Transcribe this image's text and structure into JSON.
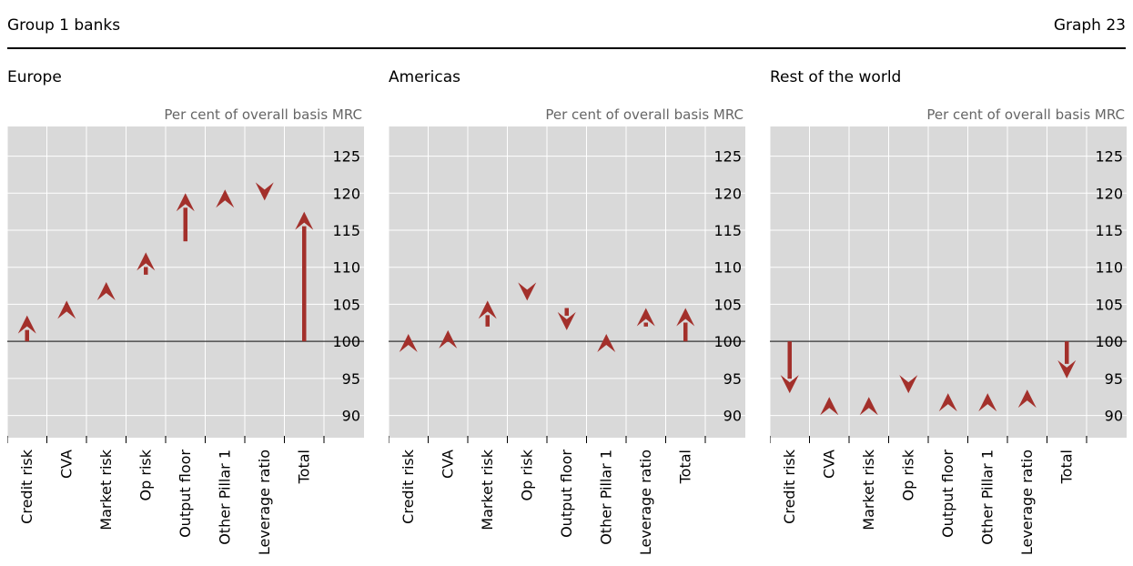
{
  "header": {
    "left": "Group 1 banks",
    "right": "Graph 23"
  },
  "colors": {
    "arrow": "#a3302b",
    "plot_bg": "#d9d9d9",
    "grid": "#ffffff",
    "baseline": "#333333"
  },
  "chart_data": [
    {
      "type": "arrow",
      "title": "Europe",
      "unit_label": "Per cent of overall basis MRC",
      "ylim": [
        87,
        129
      ],
      "yticks": [
        90,
        95,
        100,
        105,
        110,
        115,
        120,
        125
      ],
      "baseline": 100,
      "categories": [
        "Credit risk",
        "CVA",
        "Market risk",
        "Op risk",
        "Output floor",
        "Other Pillar 1",
        "Leverage ratio",
        "Total"
      ],
      "arrows": [
        {
          "from": 100,
          "to": 103.5
        },
        {
          "from": 104.5,
          "to": 105.5
        },
        {
          "from": 106.5,
          "to": 108.0
        },
        {
          "from": 109.0,
          "to": 112.0
        },
        {
          "from": 113.5,
          "to": 120.0
        },
        {
          "from": 119.0,
          "to": 120.5
        },
        {
          "from": 120.5,
          "to": 119.0
        },
        {
          "from": 100,
          "to": 117.5
        }
      ]
    },
    {
      "type": "arrow",
      "title": "Americas",
      "unit_label": "Per cent of overall basis MRC",
      "ylim": [
        87,
        129
      ],
      "yticks": [
        90,
        95,
        100,
        105,
        110,
        115,
        120,
        125
      ],
      "baseline": 100,
      "categories": [
        "Credit risk",
        "CVA",
        "Market risk",
        "Op risk",
        "Output floor",
        "Other Pillar 1",
        "Leverage ratio",
        "Total"
      ],
      "arrows": [
        {
          "from": 100,
          "to": 101.0
        },
        {
          "from": 101.0,
          "to": 101.5
        },
        {
          "from": 102.0,
          "to": 105.5
        },
        {
          "from": 106.5,
          "to": 105.5
        },
        {
          "from": 104.5,
          "to": 101.5
        },
        {
          "from": 100.0,
          "to": 101.0
        },
        {
          "from": 102.0,
          "to": 104.5
        },
        {
          "from": 100.0,
          "to": 104.5
        }
      ]
    },
    {
      "type": "arrow",
      "title": "Rest of the world",
      "unit_label": "Per cent of overall basis MRC",
      "ylim": [
        87,
        129
      ],
      "yticks": [
        90,
        95,
        100,
        105,
        110,
        115,
        120,
        125
      ],
      "baseline": 100,
      "categories": [
        "Credit risk",
        "CVA",
        "Market risk",
        "Op risk",
        "Output floor",
        "Other Pillar 1",
        "Leverage ratio",
        "Total"
      ],
      "arrows": [
        {
          "from": 100,
          "to": 93.0
        },
        {
          "from": 91.5,
          "to": 92.5
        },
        {
          "from": 91.5,
          "to": 92.5
        },
        {
          "from": 94.0,
          "to": 93.0
        },
        {
          "from": 92.0,
          "to": 93.0
        },
        {
          "from": 92.0,
          "to": 93.0
        },
        {
          "from": 92.5,
          "to": 93.5
        },
        {
          "from": 100,
          "to": 95.0
        }
      ]
    }
  ]
}
